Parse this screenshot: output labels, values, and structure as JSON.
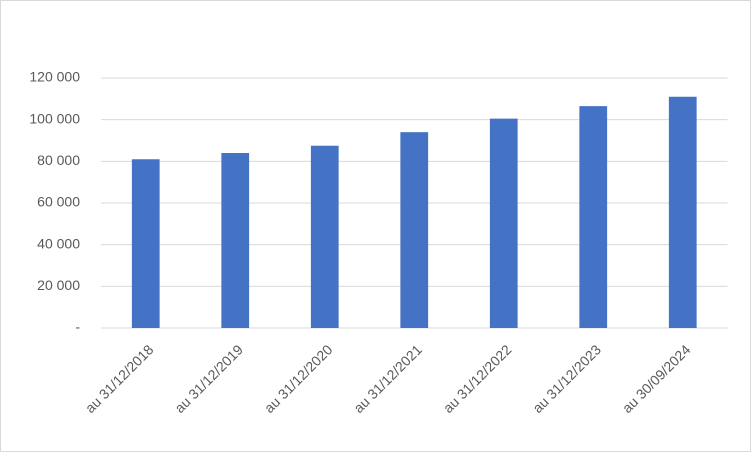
{
  "chart_data": {
    "type": "bar",
    "categories": [
      "au 31/12/2018",
      "au 31/12/2019",
      "au 31/12/2020",
      "au 31/12/2021",
      "au 31/12/2022",
      "au 31/12/2023",
      "au 30/09/2024"
    ],
    "values": [
      81000,
      84000,
      87500,
      94000,
      100500,
      106500,
      111000
    ],
    "color": "#4472c4",
    "ylim": [
      0,
      120000
    ],
    "yticks": [
      {
        "value": 0,
        "label": "-"
      },
      {
        "value": 20000,
        "label": "20 000"
      },
      {
        "value": 40000,
        "label": "40 000"
      },
      {
        "value": 60000,
        "label": "60 000"
      },
      {
        "value": 80000,
        "label": "80 000"
      },
      {
        "value": 100000,
        "label": "100 000"
      },
      {
        "value": 120000,
        "label": "120 000"
      }
    ],
    "grid": true
  }
}
